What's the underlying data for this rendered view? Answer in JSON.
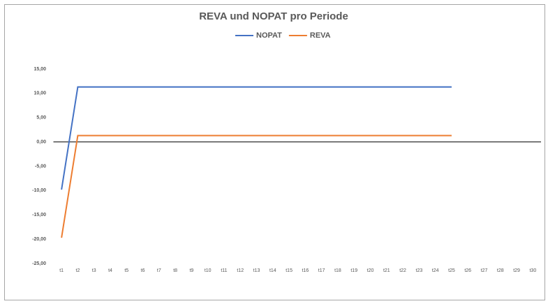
{
  "chart_data": {
    "type": "line",
    "title": "REVA und NOPAT pro Periode",
    "categories": [
      "t1",
      "t2",
      "t3",
      "t4",
      "t5",
      "t6",
      "t7",
      "t8",
      "t9",
      "t10",
      "t11",
      "t12",
      "t13",
      "t14",
      "t15",
      "t16",
      "t17",
      "t18",
      "t19",
      "t20",
      "t21",
      "t22",
      "t23",
      "t24",
      "t25",
      "t26",
      "t27",
      "t28",
      "t29",
      "t30"
    ],
    "series": [
      {
        "name": "NOPAT",
        "color": "#4472c4",
        "values": [
          -9.8,
          11.3,
          11.3,
          11.3,
          11.3,
          11.3,
          11.3,
          11.3,
          11.3,
          11.3,
          11.3,
          11.3,
          11.3,
          11.3,
          11.3,
          11.3,
          11.3,
          11.3,
          11.3,
          11.3,
          11.3,
          11.3,
          11.3,
          11.3,
          11.3,
          null,
          null,
          null,
          null,
          null
        ]
      },
      {
        "name": "REVA",
        "color": "#ed7d31",
        "values": [
          -19.7,
          1.3,
          1.3,
          1.3,
          1.3,
          1.3,
          1.3,
          1.3,
          1.3,
          1.3,
          1.3,
          1.3,
          1.3,
          1.3,
          1.3,
          1.3,
          1.3,
          1.3,
          1.3,
          1.3,
          1.3,
          1.3,
          1.3,
          1.3,
          1.3,
          null,
          null,
          null,
          null,
          null
        ]
      }
    ],
    "ylim": [
      -25,
      15
    ],
    "yticks": [
      {
        "value": -25,
        "label": "-25,00"
      },
      {
        "value": -20,
        "label": "-20,00"
      },
      {
        "value": -15,
        "label": "-15,00"
      },
      {
        "value": -10,
        "label": "-10,00"
      },
      {
        "value": -5,
        "label": "-5,00"
      },
      {
        "value": 0,
        "label": "0,00"
      },
      {
        "value": 5,
        "label": "5,00"
      },
      {
        "value": 10,
        "label": "10,00"
      },
      {
        "value": 15,
        "label": "15,00"
      }
    ],
    "negative_label_color": "#c00000",
    "grid": false,
    "legend": "top"
  }
}
